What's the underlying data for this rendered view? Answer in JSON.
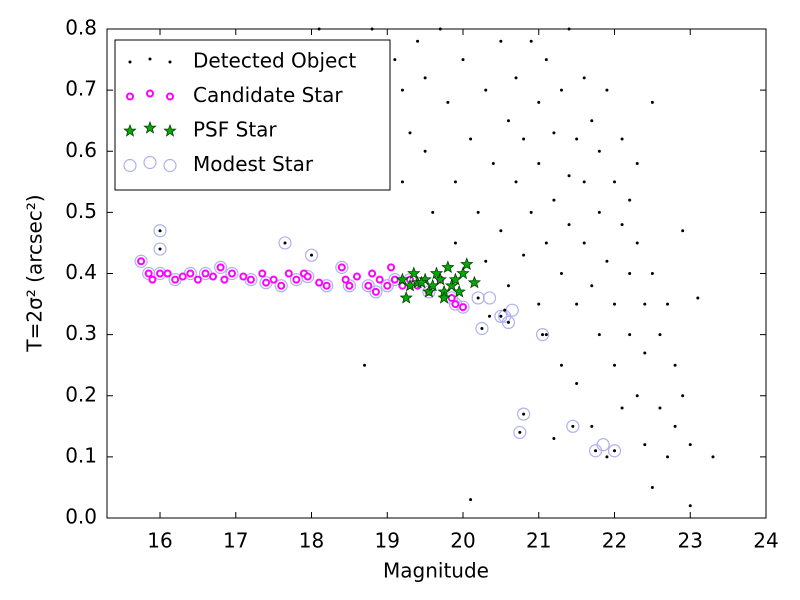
{
  "chart_data": {
    "type": "scatter",
    "xlabel": "Magnitude",
    "ylabel": "T=2σ² (arcsec²)",
    "xlim": [
      15.3,
      24
    ],
    "ylim": [
      0,
      0.8
    ],
    "xticks": [
      16,
      17,
      18,
      19,
      20,
      21,
      22,
      23,
      24
    ],
    "yticks": [
      {
        "value": 0,
        "label": "0.0"
      },
      0.1,
      0.2,
      0.3,
      0.4,
      0.5,
      0.6,
      0.7,
      0.8
    ],
    "legend": "upper left",
    "series": [
      {
        "name": "Modest Star",
        "color": "#b0b0f0",
        "marker": "circle-large",
        "x": [
          16.0,
          16.0,
          17.65,
          18.0,
          20.2,
          20.25,
          20.35,
          20.5,
          20.55,
          20.6,
          20.65,
          20.75,
          20.8,
          21.05,
          21.45,
          21.75,
          21.85,
          22.0,
          15.75,
          15.85,
          16.0,
          16.2,
          16.4,
          16.6,
          16.8,
          16.95,
          17.2,
          17.4,
          17.6,
          17.8,
          17.95,
          18.2,
          18.4,
          18.5,
          18.75,
          18.85,
          19.0,
          19.1,
          19.3,
          19.55,
          19.85,
          19.9,
          20.0
        ],
        "y": [
          0.47,
          0.44,
          0.45,
          0.43,
          0.36,
          0.31,
          0.36,
          0.33,
          0.33,
          0.32,
          0.34,
          0.14,
          0.17,
          0.3,
          0.15,
          0.11,
          0.12,
          0.11,
          0.42,
          0.4,
          0.4,
          0.39,
          0.4,
          0.4,
          0.41,
          0.4,
          0.39,
          0.385,
          0.38,
          0.39,
          0.395,
          0.38,
          0.41,
          0.38,
          0.38,
          0.37,
          0.38,
          0.39,
          0.39,
          0.37,
          0.36,
          0.35,
          0.345
        ]
      },
      {
        "name": "Candidate Star",
        "color": "#ff00ff",
        "marker": "circle-small",
        "x": [
          15.75,
          15.85,
          15.9,
          16.0,
          16.1,
          16.2,
          16.3,
          16.4,
          16.5,
          16.6,
          16.7,
          16.8,
          16.85,
          16.95,
          17.1,
          17.2,
          17.35,
          17.4,
          17.5,
          17.6,
          17.7,
          17.8,
          17.9,
          17.95,
          18.1,
          18.2,
          18.4,
          18.45,
          18.5,
          18.6,
          18.75,
          18.8,
          18.85,
          18.9,
          19.0,
          19.05,
          19.1,
          19.2,
          19.3,
          19.4,
          19.55,
          19.7,
          19.85,
          19.9,
          20.0
        ],
        "y": [
          0.42,
          0.4,
          0.39,
          0.4,
          0.4,
          0.39,
          0.395,
          0.4,
          0.39,
          0.4,
          0.395,
          0.41,
          0.39,
          0.4,
          0.395,
          0.39,
          0.4,
          0.385,
          0.39,
          0.38,
          0.4,
          0.39,
          0.4,
          0.395,
          0.385,
          0.38,
          0.41,
          0.39,
          0.38,
          0.395,
          0.38,
          0.4,
          0.37,
          0.39,
          0.38,
          0.41,
          0.39,
          0.38,
          0.39,
          0.38,
          0.37,
          0.39,
          0.36,
          0.35,
          0.345
        ]
      },
      {
        "name": "PSF Star",
        "color": "#00aa00",
        "marker": "star",
        "x": [
          19.2,
          19.25,
          19.3,
          19.35,
          19.4,
          19.5,
          19.55,
          19.6,
          19.65,
          19.7,
          19.75,
          19.8,
          19.85,
          19.9,
          19.95,
          20.0,
          20.05,
          20.15,
          19.45,
          19.75
        ],
        "y": [
          0.39,
          0.36,
          0.38,
          0.4,
          0.385,
          0.39,
          0.37,
          0.38,
          0.4,
          0.39,
          0.37,
          0.41,
          0.38,
          0.39,
          0.37,
          0.4,
          0.415,
          0.385,
          0.385,
          0.36
        ]
      },
      {
        "name": "Detected Object",
        "color": "#000000",
        "marker": "dot",
        "x": [
          18.1,
          18.7,
          18.8,
          19.1,
          19.2,
          19.3,
          19.2,
          19.4,
          19.5,
          19.6,
          19.5,
          19.7,
          19.8,
          19.9,
          19.9,
          20.0,
          20.1,
          20.1,
          20.2,
          20.3,
          20.3,
          20.4,
          20.5,
          20.5,
          20.6,
          20.6,
          20.7,
          20.7,
          20.8,
          20.8,
          20.9,
          20.9,
          21.0,
          21.0,
          21.0,
          21.1,
          21.1,
          21.1,
          21.2,
          21.2,
          21.2,
          21.3,
          21.3,
          21.3,
          21.4,
          21.4,
          21.4,
          21.5,
          21.5,
          21.5,
          21.6,
          21.6,
          21.6,
          21.7,
          21.7,
          21.7,
          21.8,
          21.8,
          21.8,
          21.9,
          21.9,
          21.9,
          22.0,
          22.0,
          22.0,
          22.1,
          22.1,
          22.1,
          22.2,
          22.2,
          22.2,
          22.3,
          22.3,
          22.3,
          22.4,
          22.4,
          22.4,
          22.5,
          22.5,
          22.5,
          22.6,
          22.6,
          22.7,
          22.7,
          22.8,
          22.8,
          22.9,
          22.9,
          23.0,
          23.0,
          23.1,
          23.3,
          20.35,
          20.55,
          20.75,
          20.8,
          21.45,
          16.0,
          16.0,
          17.65,
          18.0,
          21.75,
          22.0,
          20.6,
          20.5,
          20.2,
          20.25,
          21.05
        ],
        "y": [
          0.8,
          0.25,
          0.8,
          0.75,
          0.7,
          0.63,
          0.55,
          0.78,
          0.72,
          0.5,
          0.6,
          0.8,
          0.68,
          0.55,
          0.45,
          0.75,
          0.62,
          0.03,
          0.5,
          0.7,
          0.42,
          0.58,
          0.78,
          0.47,
          0.65,
          0.38,
          0.55,
          0.72,
          0.43,
          0.62,
          0.5,
          0.78,
          0.35,
          0.58,
          0.68,
          0.45,
          0.3,
          0.75,
          0.52,
          0.63,
          0.13,
          0.4,
          0.7,
          0.25,
          0.56,
          0.48,
          0.8,
          0.35,
          0.62,
          0.22,
          0.45,
          0.72,
          0.55,
          0.38,
          0.65,
          0.15,
          0.5,
          0.3,
          0.6,
          0.42,
          0.7,
          0.1,
          0.35,
          0.55,
          0.25,
          0.48,
          0.62,
          0.18,
          0.4,
          0.3,
          0.52,
          0.2,
          0.45,
          0.58,
          0.35,
          0.12,
          0.27,
          0.68,
          0.4,
          0.05,
          0.3,
          0.18,
          0.35,
          0.1,
          0.25,
          0.15,
          0.2,
          0.47,
          0.12,
          0.02,
          0.36,
          0.1,
          0.33,
          0.34,
          0.14,
          0.17,
          0.15,
          0.47,
          0.44,
          0.45,
          0.43,
          0.11,
          0.11,
          0.32,
          0.33,
          0.36,
          0.31,
          0.3
        ]
      }
    ]
  }
}
